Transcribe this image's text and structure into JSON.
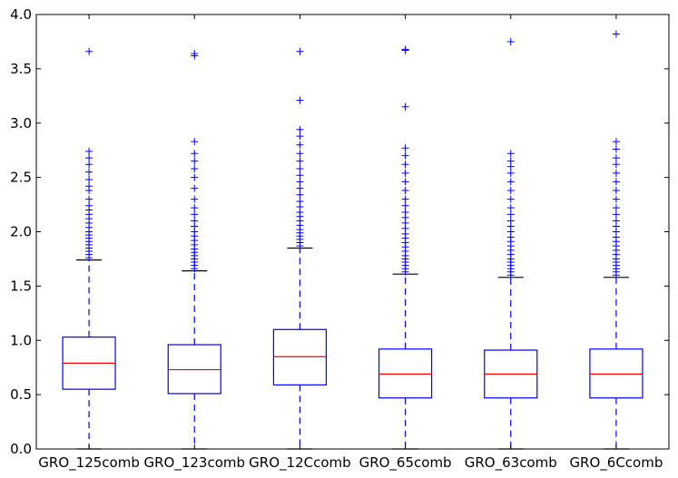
{
  "chart_data": {
    "type": "box",
    "title": "",
    "xlabel": "",
    "ylabel": "",
    "ylim": [
      0,
      4
    ],
    "yticks": [
      "0.0",
      "0.5",
      "1.0",
      "1.5",
      "2.0",
      "2.5",
      "3.0",
      "3.5",
      "4.0"
    ],
    "grid": false,
    "colors": {
      "box": "#0000ff",
      "median": "#ff0000",
      "whisker": "#0000ff",
      "cap": "#000000",
      "flier": "#0000ff"
    },
    "boxes": [
      {
        "category": "GRO_125comb",
        "whisker_low": 0.0,
        "q1": 0.55,
        "median": 0.79,
        "q3": 1.03,
        "whisker_high": 1.74,
        "fliers": [
          1.76,
          1.79,
          1.82,
          1.85,
          1.88,
          1.91,
          1.94,
          1.97,
          2.0,
          2.04,
          2.08,
          2.12,
          2.16,
          2.2,
          2.24,
          2.3,
          2.38,
          2.42,
          2.48,
          2.55,
          2.62,
          2.68,
          2.74,
          3.66
        ]
      },
      {
        "category": "GRO_123comb",
        "whisker_low": 0.0,
        "q1": 0.51,
        "median": 0.73,
        "q3": 0.96,
        "whisker_high": 1.64,
        "fliers": [
          1.66,
          1.69,
          1.72,
          1.75,
          1.78,
          1.81,
          1.84,
          1.88,
          1.92,
          1.96,
          2.0,
          2.05,
          2.1,
          2.16,
          2.22,
          2.3,
          2.4,
          2.5,
          2.58,
          2.65,
          2.72,
          2.83,
          3.62,
          3.64
        ]
      },
      {
        "category": "GRO_12Ccomb",
        "whisker_low": 0.0,
        "q1": 0.59,
        "median": 0.85,
        "q3": 1.1,
        "whisker_high": 1.85,
        "fliers": [
          1.87,
          1.9,
          1.93,
          1.96,
          1.99,
          2.02,
          2.06,
          2.1,
          2.14,
          2.18,
          2.23,
          2.28,
          2.34,
          2.4,
          2.46,
          2.52,
          2.58,
          2.65,
          2.72,
          2.8,
          2.88,
          2.94,
          3.21,
          3.66
        ]
      },
      {
        "category": "GRO_65comb",
        "whisker_low": 0.0,
        "q1": 0.47,
        "median": 0.69,
        "q3": 0.92,
        "whisker_high": 1.61,
        "fliers": [
          1.63,
          1.66,
          1.69,
          1.72,
          1.75,
          1.78,
          1.82,
          1.86,
          1.9,
          1.94,
          1.98,
          2.03,
          2.08,
          2.13,
          2.18,
          2.24,
          2.3,
          2.38,
          2.46,
          2.54,
          2.62,
          2.7,
          2.77,
          3.15,
          3.67,
          3.68
        ]
      },
      {
        "category": "GRO_63comb",
        "whisker_low": 0.0,
        "q1": 0.47,
        "median": 0.69,
        "q3": 0.91,
        "whisker_high": 1.58,
        "fliers": [
          1.6,
          1.63,
          1.66,
          1.69,
          1.72,
          1.75,
          1.79,
          1.83,
          1.87,
          1.91,
          1.95,
          2.0,
          2.05,
          2.1,
          2.16,
          2.22,
          2.3,
          2.38,
          2.46,
          2.54,
          2.6,
          2.65,
          2.72,
          3.75
        ]
      },
      {
        "category": "GRO_6Ccomb",
        "whisker_low": 0.0,
        "q1": 0.47,
        "median": 0.69,
        "q3": 0.92,
        "whisker_high": 1.58,
        "fliers": [
          1.6,
          1.63,
          1.66,
          1.69,
          1.72,
          1.75,
          1.79,
          1.83,
          1.87,
          1.91,
          1.95,
          2.0,
          2.05,
          2.1,
          2.16,
          2.22,
          2.3,
          2.38,
          2.46,
          2.54,
          2.62,
          2.68,
          2.76,
          2.83,
          3.82
        ]
      }
    ]
  }
}
